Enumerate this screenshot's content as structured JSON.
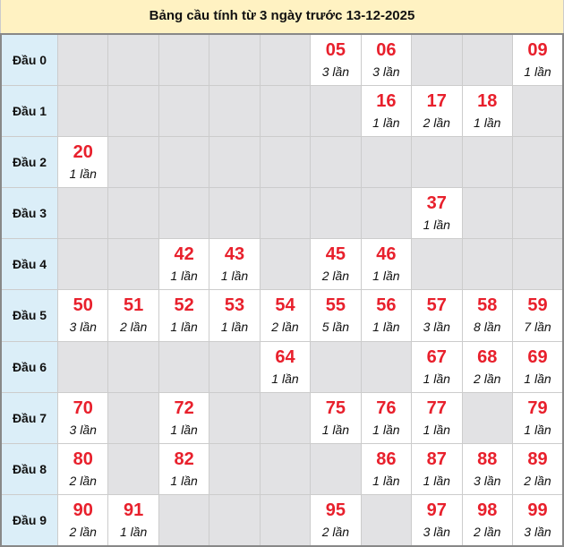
{
  "title": "Bảng cầu tính từ 3 ngày trước 13-12-2025",
  "colors": {
    "number": "#e8202c",
    "header_bg": "#dbeef8",
    "empty_bg": "#e2e2e4",
    "title_bg": "#fff2c2"
  },
  "count_suffix": "lần",
  "rows": [
    {
      "label": "Đầu 0",
      "cells": [
        null,
        null,
        null,
        null,
        null,
        {
          "num": "05",
          "count": "3 lần"
        },
        {
          "num": "06",
          "count": "3 lần"
        },
        null,
        null,
        {
          "num": "09",
          "count": "1 lần"
        }
      ]
    },
    {
      "label": "Đầu 1",
      "cells": [
        null,
        null,
        null,
        null,
        null,
        null,
        {
          "num": "16",
          "count": "1 lần"
        },
        {
          "num": "17",
          "count": "2 lần"
        },
        {
          "num": "18",
          "count": "1 lần"
        },
        null
      ]
    },
    {
      "label": "Đầu 2",
      "cells": [
        {
          "num": "20",
          "count": "1 lần"
        },
        null,
        null,
        null,
        null,
        null,
        null,
        null,
        null,
        null
      ]
    },
    {
      "label": "Đầu 3",
      "cells": [
        null,
        null,
        null,
        null,
        null,
        null,
        null,
        {
          "num": "37",
          "count": "1 lần"
        },
        null,
        null
      ]
    },
    {
      "label": "Đầu 4",
      "cells": [
        null,
        null,
        {
          "num": "42",
          "count": "1 lần"
        },
        {
          "num": "43",
          "count": "1 lần"
        },
        null,
        {
          "num": "45",
          "count": "2 lần"
        },
        {
          "num": "46",
          "count": "1 lần"
        },
        null,
        null,
        null
      ]
    },
    {
      "label": "Đầu 5",
      "cells": [
        {
          "num": "50",
          "count": "3 lần"
        },
        {
          "num": "51",
          "count": "2 lần"
        },
        {
          "num": "52",
          "count": "1 lần"
        },
        {
          "num": "53",
          "count": "1 lần"
        },
        {
          "num": "54",
          "count": "2 lần"
        },
        {
          "num": "55",
          "count": "5 lần"
        },
        {
          "num": "56",
          "count": "1 lần"
        },
        {
          "num": "57",
          "count": "3 lần"
        },
        {
          "num": "58",
          "count": "8 lần"
        },
        {
          "num": "59",
          "count": "7 lần"
        }
      ]
    },
    {
      "label": "Đầu 6",
      "cells": [
        null,
        null,
        null,
        null,
        {
          "num": "64",
          "count": "1 lần"
        },
        null,
        null,
        {
          "num": "67",
          "count": "1 lần"
        },
        {
          "num": "68",
          "count": "2 lần"
        },
        {
          "num": "69",
          "count": "1 lần"
        }
      ]
    },
    {
      "label": "Đầu 7",
      "cells": [
        {
          "num": "70",
          "count": "3 lần"
        },
        null,
        {
          "num": "72",
          "count": "1 lần"
        },
        null,
        null,
        {
          "num": "75",
          "count": "1 lần"
        },
        {
          "num": "76",
          "count": "1 lần"
        },
        {
          "num": "77",
          "count": "1 lần"
        },
        null,
        {
          "num": "79",
          "count": "1 lần"
        }
      ]
    },
    {
      "label": "Đầu 8",
      "cells": [
        {
          "num": "80",
          "count": "2 lần"
        },
        null,
        {
          "num": "82",
          "count": "1 lần"
        },
        null,
        null,
        null,
        {
          "num": "86",
          "count": "1 lần"
        },
        {
          "num": "87",
          "count": "1 lần"
        },
        {
          "num": "88",
          "count": "3 lần"
        },
        {
          "num": "89",
          "count": "2 lần"
        }
      ]
    },
    {
      "label": "Đầu 9",
      "cells": [
        {
          "num": "90",
          "count": "2 lần"
        },
        {
          "num": "91",
          "count": "1 lần"
        },
        null,
        null,
        null,
        {
          "num": "95",
          "count": "2 lần"
        },
        null,
        {
          "num": "97",
          "count": "3 lần"
        },
        {
          "num": "98",
          "count": "2 lần"
        },
        {
          "num": "99",
          "count": "3 lần"
        }
      ]
    }
  ]
}
